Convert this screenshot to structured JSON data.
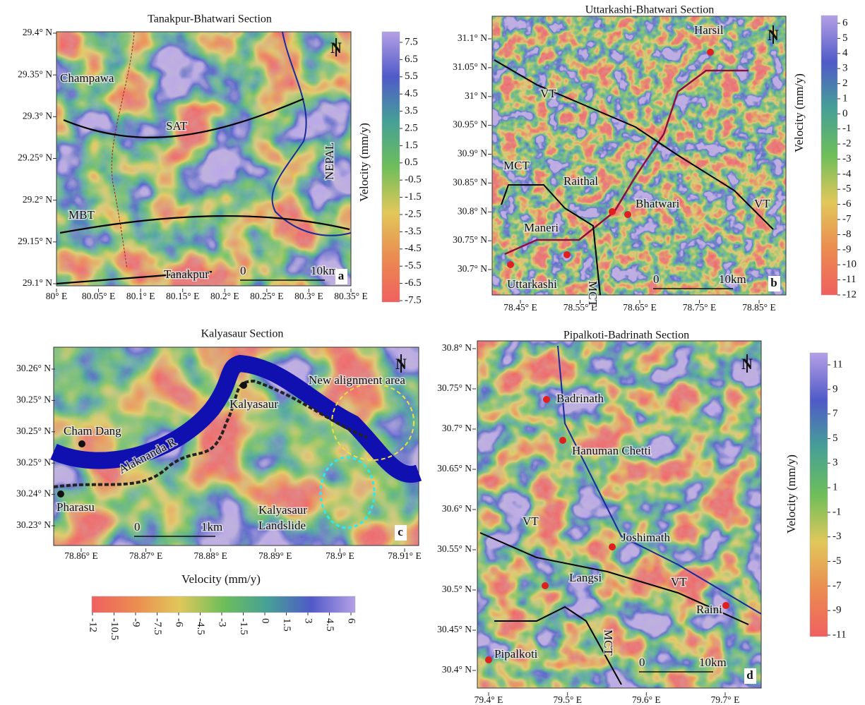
{
  "panels": [
    {
      "title": "Tanakpur-Bhatwari Section",
      "lat_ticks": [
        "29.4° N",
        "29.35° N",
        "29.3° N",
        "29.25° N",
        "29.2° N",
        "29.15° N",
        "29.1° N"
      ],
      "lon_ticks": [
        "80° E",
        "80.05° E",
        "80.1° E",
        "80.15° E",
        "80.2° E",
        "80.25° E",
        "80.3° E",
        "80.35° E"
      ],
      "labels": [
        "Champawa",
        "SAT",
        "MBT",
        "NEPAL",
        "Tanakpur"
      ],
      "scale": [
        "0",
        "10km"
      ],
      "letter": "a",
      "north": "N",
      "colorbar": {
        "label": "Velocity (mm/y)",
        "ticks": [
          7.5,
          6.5,
          5.5,
          4.5,
          3.5,
          2.5,
          1.5,
          0.5,
          -0.5,
          -1.5,
          -2.5,
          -3.5,
          -4.5,
          -5.5,
          -6.5,
          -7.5
        ]
      }
    },
    {
      "title": "Uttarkashi-Bhatwari Section",
      "lat_ticks": [
        "31.1° N",
        "31.05° N",
        "31° N",
        "30.95° N",
        "30.9° N",
        "30.85° N",
        "30.8° N",
        "30.75° N",
        "30.7° N"
      ],
      "lon_ticks": [
        "78.45° E",
        "78.55° E",
        "78.65° E",
        "78.75° E",
        "78.85° E"
      ],
      "labels": [
        "Harsil",
        "VT",
        "MCT",
        "Raithal",
        "Bhatwari",
        "Maneri",
        "VT",
        "MCT",
        "Uttarkashi"
      ],
      "scale": [
        "0",
        "10km"
      ],
      "letter": "b",
      "north": "N",
      "colorbar": {
        "label": "Velocity (mm/y)",
        "ticks": [
          6,
          5,
          4,
          3,
          2,
          1,
          0,
          -1,
          -2,
          -3,
          -4,
          -5,
          -6,
          -7,
          -8,
          -9,
          -10,
          -11,
          -12
        ]
      }
    },
    {
      "title": "Kalyasaur Section",
      "lat_ticks": [
        "30.26° N",
        "30.25° N",
        "30.25° N",
        "30.25° N",
        "30.24° N",
        "30.23° N"
      ],
      "lon_ticks": [
        "78.86° E",
        "78.87° E",
        "78.88° E",
        "78.89° E",
        "78.9° E",
        "78.91° E"
      ],
      "labels": [
        "New alignment area",
        "Kalyasaur",
        "Cham Dang",
        "Alaknanda R",
        "Pharasu",
        "Kalyasaur",
        "Landslide"
      ],
      "scale": [
        "0",
        "1km"
      ],
      "letter": "c",
      "north": "N",
      "colorbar": {
        "label": "Velocity (mm/y)",
        "ticks": [
          -12,
          -10.5,
          -9,
          -7.5,
          -6,
          -4.5,
          -3,
          -1.5,
          0,
          1.5,
          3,
          4.5,
          6
        ]
      }
    },
    {
      "title": "Pipalkoti-Badrinath Section",
      "lat_ticks": [
        "30.8° N",
        "30.75° N",
        "30.7° N",
        "30.65° N",
        "30.6° N",
        "30.55° N",
        "30.5° N",
        "30.45° N",
        "30.4° N"
      ],
      "lon_ticks": [
        "79.4° E",
        "79.5° E",
        "79.6° E",
        "79.7° E"
      ],
      "labels": [
        "Badrinath",
        "Hanuman Chetti",
        "VT",
        "Joshimath",
        "Langsi",
        "VT",
        "Raini",
        "MCT",
        "Pipalkoti"
      ],
      "scale": [
        "0",
        "10km"
      ],
      "letter": "d",
      "north": "N",
      "colorbar": {
        "label": "Velocity (mm/y)",
        "ticks": [
          11,
          9,
          7,
          5,
          3,
          1,
          -1,
          -3,
          -5,
          -7,
          -9,
          -11
        ]
      }
    }
  ]
}
